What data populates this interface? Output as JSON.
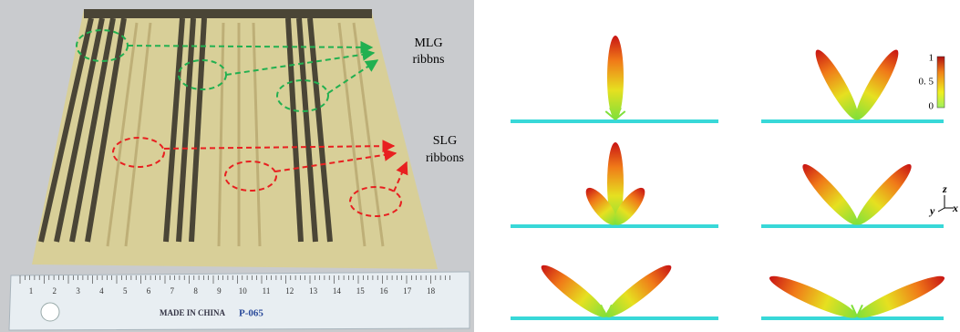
{
  "photo": {
    "mlg_label": [
      "MLG",
      "ribbns"
    ],
    "slg_label": [
      "SLG",
      "ribbons"
    ],
    "ruler": {
      "numbers": [
        1,
        2,
        3,
        4,
        5,
        6,
        7,
        8,
        9,
        10,
        11,
        12,
        13,
        14,
        15,
        16,
        17,
        18
      ],
      "brand": "MADE IN CHINA",
      "model": "P-065"
    }
  },
  "patterns": {
    "colorbar_labels": [
      "1",
      "0. 5",
      "0"
    ],
    "axes": {
      "z": "z",
      "y": "y",
      "x": "x"
    }
  }
}
